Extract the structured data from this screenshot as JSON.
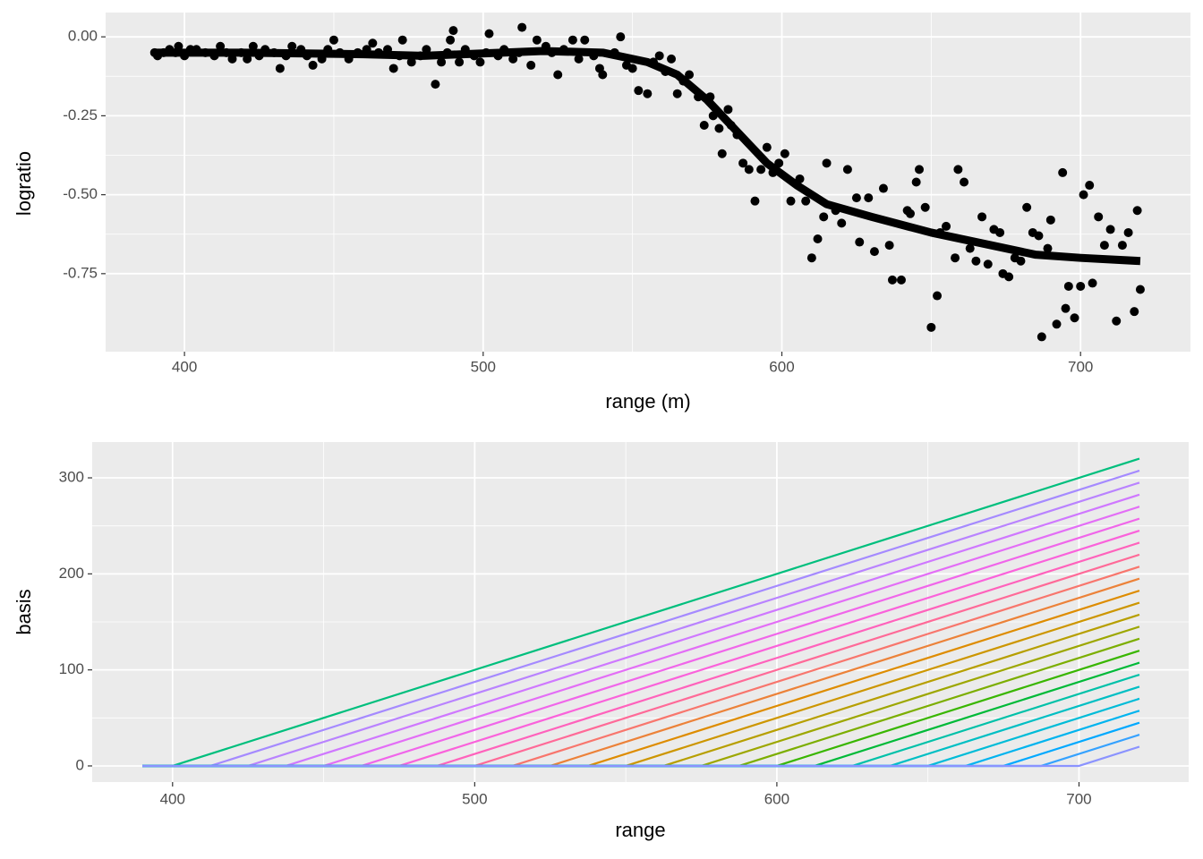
{
  "chart_data": [
    {
      "type": "scatter",
      "x_label": "range (m)",
      "y_label": "logratio",
      "xlim": [
        373.6,
        736.8
      ],
      "ylim": [
        -0.997,
        0.077
      ],
      "xticks": [
        400,
        500,
        600,
        700
      ],
      "yticks": [
        {
          "value": 0,
          "label": "0.00"
        },
        {
          "value": -0.25,
          "label": "-0.25"
        },
        {
          "value": -0.5,
          "label": "-0.50"
        },
        {
          "value": -0.75,
          "label": "-0.75"
        }
      ],
      "grid": true,
      "series": [
        {
          "type": "scatter",
          "color": "#000000",
          "x": [
            390,
            391,
            393,
            395,
            397,
            398,
            400,
            402,
            404,
            407,
            410,
            412,
            414,
            416,
            419,
            421,
            423,
            425,
            427,
            430,
            432,
            434,
            436,
            439,
            441,
            443,
            446,
            448,
            450,
            452,
            455,
            458,
            461,
            463,
            465,
            468,
            470,
            472,
            473,
            476,
            479,
            481,
            484,
            486,
            488,
            489,
            490,
            492,
            494,
            497,
            499,
            501,
            502,
            505,
            507,
            510,
            512,
            513,
            516,
            518,
            521,
            523,
            525,
            527,
            530,
            532,
            534,
            537,
            539,
            540,
            544,
            546,
            548,
            550,
            552,
            555,
            557,
            559,
            561,
            563,
            565,
            567,
            569,
            572,
            574,
            576,
            577,
            579,
            580,
            582,
            583,
            585,
            587,
            589,
            591,
            593,
            595,
            597,
            599,
            601,
            603,
            606,
            608,
            610,
            612,
            614,
            615,
            618,
            620,
            622,
            625,
            626,
            629,
            631,
            634,
            636,
            637,
            640,
            642,
            643,
            645,
            646,
            648,
            650,
            652,
            653,
            655,
            658,
            659,
            661,
            663,
            665,
            667,
            669,
            671,
            673,
            674,
            676,
            678,
            680,
            682,
            684,
            686,
            687,
            689,
            690,
            692,
            694,
            695,
            696,
            698,
            700,
            701,
            703,
            704,
            706,
            708,
            710,
            712,
            714,
            716,
            718,
            719,
            720
          ],
          "values": [
            -0.05,
            -0.06,
            -0.05,
            -0.04,
            -0.05,
            -0.03,
            -0.06,
            -0.04,
            -0.04,
            -0.05,
            -0.06,
            -0.03,
            -0.05,
            -0.07,
            -0.05,
            -0.07,
            -0.03,
            -0.06,
            -0.04,
            -0.05,
            -0.1,
            -0.06,
            -0.03,
            -0.04,
            -0.06,
            -0.09,
            -0.07,
            -0.04,
            -0.01,
            -0.05,
            -0.07,
            -0.05,
            -0.04,
            -0.02,
            -0.05,
            -0.04,
            -0.1,
            -0.06,
            -0.01,
            -0.08,
            -0.06,
            -0.04,
            -0.15,
            -0.08,
            -0.05,
            -0.01,
            0.02,
            -0.08,
            -0.04,
            -0.06,
            -0.08,
            -0.05,
            0.01,
            -0.06,
            -0.04,
            -0.07,
            -0.05,
            0.03,
            -0.09,
            -0.01,
            -0.03,
            -0.05,
            -0.12,
            -0.04,
            -0.01,
            -0.07,
            -0.01,
            -0.06,
            -0.1,
            -0.12,
            -0.05,
            0,
            -0.09,
            -0.1,
            -0.17,
            -0.18,
            -0.08,
            -0.06,
            -0.11,
            -0.07,
            -0.18,
            -0.14,
            -0.12,
            -0.19,
            -0.28,
            -0.19,
            -0.25,
            -0.29,
            -0.37,
            -0.23,
            -0.28,
            -0.31,
            -0.4,
            -0.42,
            -0.52,
            -0.42,
            -0.35,
            -0.43,
            -0.4,
            -0.37,
            -0.52,
            -0.45,
            -0.52,
            -0.7,
            -0.64,
            -0.57,
            -0.4,
            -0.55,
            -0.59,
            -0.42,
            -0.51,
            -0.65,
            -0.51,
            -0.68,
            -0.48,
            -0.66,
            -0.77,
            -0.77,
            -0.55,
            -0.56,
            -0.46,
            -0.42,
            -0.54,
            -0.92,
            -0.82,
            -0.62,
            -0.6,
            -0.7,
            -0.42,
            -0.46,
            -0.67,
            -0.71,
            -0.57,
            -0.72,
            -0.61,
            -0.62,
            -0.75,
            -0.76,
            -0.7,
            -0.71,
            -0.54,
            -0.62,
            -0.63,
            -0.95,
            -0.67,
            -0.58,
            -0.91,
            -0.43,
            -0.86,
            -0.79,
            -0.89,
            -0.79,
            -0.5,
            -0.47,
            -0.78,
            -0.57,
            -0.66,
            -0.61,
            -0.9,
            -0.66,
            -0.62,
            -0.87,
            -0.55,
            -0.8
          ]
        },
        {
          "type": "line",
          "color": "#000000",
          "x": [
            390,
            420,
            460,
            480,
            520,
            540,
            555,
            565,
            575,
            585,
            595,
            605,
            615,
            630,
            650,
            670,
            685,
            700,
            720
          ],
          "values": [
            -0.05,
            -0.05,
            -0.055,
            -0.06,
            -0.045,
            -0.05,
            -0.08,
            -0.12,
            -0.2,
            -0.3,
            -0.4,
            -0.47,
            -0.53,
            -0.57,
            -0.62,
            -0.66,
            -0.69,
            -0.7,
            -0.71
          ]
        }
      ]
    },
    {
      "type": "line",
      "x_label": "range",
      "y_label": "basis",
      "xlim": [
        373.4,
        736.3
      ],
      "ylim": [
        -16.8,
        337.3
      ],
      "xticks": [
        400,
        500,
        600,
        700
      ],
      "yticks": [
        0,
        100,
        200,
        300
      ],
      "grid": true,
      "series": [
        {
          "color": "#00BF7D",
          "x": [
            390,
            400,
            720
          ],
          "values": [
            0,
            0,
            320
          ]
        },
        {
          "color": "#A58AFF",
          "x": [
            390,
            412.5,
            720
          ],
          "values": [
            0,
            0,
            307.5
          ]
        },
        {
          "color": "#B983FF",
          "x": [
            390,
            425,
            720
          ],
          "values": [
            0,
            0,
            295
          ]
        },
        {
          "color": "#CF78FF",
          "x": [
            390,
            437.5,
            720
          ],
          "values": [
            0,
            0,
            282.5
          ]
        },
        {
          "color": "#E36EF6",
          "x": [
            390,
            450,
            720
          ],
          "values": [
            0,
            0,
            270
          ]
        },
        {
          "color": "#F066EA",
          "x": [
            390,
            462.5,
            720
          ],
          "values": [
            0,
            0,
            257.5
          ]
        },
        {
          "color": "#FA62DB",
          "x": [
            390,
            475,
            720
          ],
          "values": [
            0,
            0,
            245
          ]
        },
        {
          "color": "#FF62BC",
          "x": [
            390,
            487.5,
            720
          ],
          "values": [
            0,
            0,
            232.5
          ]
        },
        {
          "color": "#FF6A98",
          "x": [
            390,
            500,
            720
          ],
          "values": [
            0,
            0,
            220
          ]
        },
        {
          "color": "#F8766D",
          "x": [
            390,
            512.5,
            720
          ],
          "values": [
            0,
            0,
            207.5
          ]
        },
        {
          "color": "#EC8239",
          "x": [
            390,
            525,
            720
          ],
          "values": [
            0,
            0,
            195
          ]
        },
        {
          "color": "#DE8C00",
          "x": [
            390,
            537.5,
            720
          ],
          "values": [
            0,
            0,
            182.5
          ]
        },
        {
          "color": "#CD9600",
          "x": [
            390,
            550,
            720
          ],
          "values": [
            0,
            0,
            170
          ]
        },
        {
          "color": "#B79F00",
          "x": [
            390,
            562.5,
            720
          ],
          "values": [
            0,
            0,
            157.5
          ]
        },
        {
          "color": "#9DA700",
          "x": [
            390,
            575,
            720
          ],
          "values": [
            0,
            0,
            145
          ]
        },
        {
          "color": "#7CAE00",
          "x": [
            390,
            587.5,
            720
          ],
          "values": [
            0,
            0,
            132.5
          ]
        },
        {
          "color": "#39B600",
          "x": [
            390,
            600,
            720
          ],
          "values": [
            0,
            0,
            120
          ]
        },
        {
          "color": "#00BA38",
          "x": [
            390,
            612.5,
            720
          ],
          "values": [
            0,
            0,
            107.5
          ]
        },
        {
          "color": "#00C1A9",
          "x": [
            390,
            625,
            720
          ],
          "values": [
            0,
            0,
            95
          ]
        },
        {
          "color": "#00BFC4",
          "x": [
            390,
            637.5,
            720
          ],
          "values": [
            0,
            0,
            82.5
          ]
        },
        {
          "color": "#00BCD8",
          "x": [
            390,
            650,
            720
          ],
          "values": [
            0,
            0,
            70
          ]
        },
        {
          "color": "#00B4EF",
          "x": [
            390,
            662.5,
            720
          ],
          "values": [
            0,
            0,
            57.5
          ]
        },
        {
          "color": "#00A9FF",
          "x": [
            390,
            675,
            720
          ],
          "values": [
            0,
            0,
            45
          ]
        },
        {
          "color": "#35A2FF",
          "x": [
            390,
            687.5,
            720
          ],
          "values": [
            0,
            0,
            32.5
          ]
        },
        {
          "color": "#8B93FF",
          "x": [
            390,
            700,
            720
          ],
          "values": [
            0,
            0,
            20
          ]
        }
      ]
    }
  ]
}
